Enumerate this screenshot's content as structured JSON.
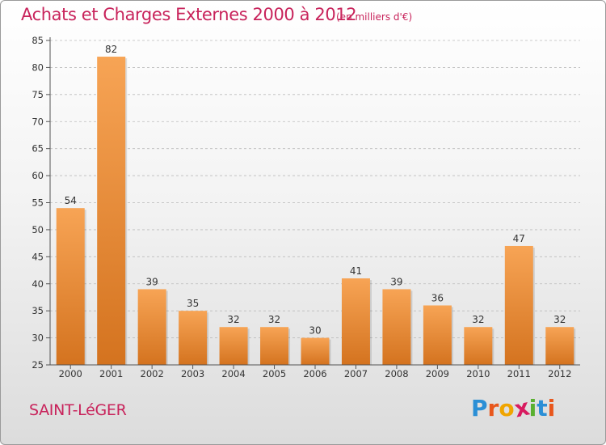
{
  "header": {
    "title": "Achats et Charges Externes 2000 à 2012",
    "unit": "(en milliers d'€)"
  },
  "footer": {
    "city": "SAINT-LéGER",
    "logo": {
      "text": "Proxiti",
      "letters": [
        {
          "char": "P",
          "color": "#2b8fd6"
        },
        {
          "char": "r",
          "color": "#e8571c"
        },
        {
          "char": "o",
          "color": "#f0a500"
        },
        {
          "char": "x",
          "color": "#d81b60"
        },
        {
          "char": "i",
          "color": "#5ab030"
        },
        {
          "char": "t",
          "color": "#2b8fd6"
        },
        {
          "char": "i",
          "color": "#e8571c"
        }
      ]
    }
  },
  "colors": {
    "title": "#c8235b",
    "bar_light": "#f7a455",
    "bar_dark": "#d4731f",
    "grid": "#bbbbbb",
    "axis": "#555555"
  },
  "chart_data": {
    "type": "bar",
    "title": "Achats et Charges Externes 2000 à 2012",
    "subtitle": "(en milliers d'€)",
    "categories": [
      "2000",
      "2001",
      "2002",
      "2003",
      "2004",
      "2005",
      "2006",
      "2007",
      "2008",
      "2009",
      "2010",
      "2011",
      "2012"
    ],
    "values": [
      54,
      82,
      39,
      35,
      32,
      32,
      30,
      41,
      39,
      36,
      32,
      47,
      32
    ],
    "ylim": [
      25,
      85
    ],
    "yticks": [
      25,
      30,
      35,
      40,
      45,
      50,
      55,
      60,
      65,
      70,
      75,
      80,
      85
    ],
    "grid": "dashed horizontal",
    "data_labels": true,
    "legend": "none"
  }
}
